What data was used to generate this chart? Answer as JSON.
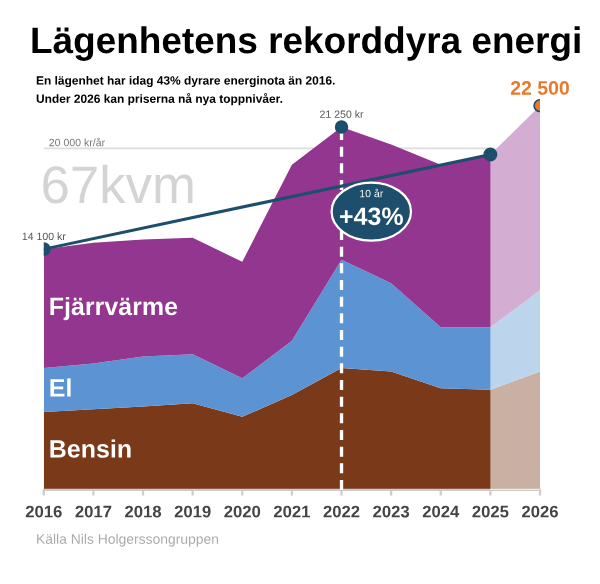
{
  "chart_data": {
    "type": "area",
    "stacked": true,
    "title": "Lägenhetens rekorddyra energi",
    "subtitle": "En lägenhet har idag 43% dyrare energinota än 2016.\nUnder 2026 kan priserna nå nya toppnivåer.",
    "categories": [
      "2016",
      "2017",
      "2018",
      "2019",
      "2020",
      "2021",
      "2022",
      "2023",
      "2024",
      "2025",
      "2026"
    ],
    "series": [
      {
        "name": "Bensin",
        "color": "#7a3a1a",
        "values": [
          4560,
          4720,
          4880,
          5080,
          4280,
          5560,
          7140,
          6940,
          5950,
          5870,
          6940
        ]
      },
      {
        "name": "El",
        "color": "#5b93d3",
        "values": [
          2580,
          2690,
          2940,
          2860,
          2260,
          3170,
          6340,
          5160,
          3570,
          3650,
          4760
        ]
      },
      {
        "name": "Fjärrvärme",
        "color": "#93368f",
        "values": [
          6960,
          7070,
          6850,
          6820,
          6820,
          10310,
          7770,
          8130,
          9520,
          10120,
          10800
        ]
      },
      {
        "type": "line",
        "color": "#1d4e6b",
        "marker": "circle",
        "values": [
          14100,
          null,
          null,
          null,
          null,
          null,
          null,
          null,
          null,
          19640,
          null
        ],
        "value_labels": [
          "14 100 kr",
          null,
          null,
          null,
          null,
          null,
          null,
          null,
          null,
          null,
          null
        ]
      },
      {
        "type": "scatter",
        "color": "#1d4e6b",
        "colors": [
          null,
          null,
          null,
          null,
          null,
          null,
          "#1d4e6b",
          null,
          null,
          null,
          "#e8792b"
        ],
        "values": [
          null,
          null,
          null,
          null,
          null,
          null,
          21250,
          null,
          null,
          null,
          22500
        ],
        "value_labels": [
          null,
          null,
          null,
          null,
          null,
          null,
          "21 250 kr",
          null,
          null,
          null,
          "22 500"
        ]
      }
    ],
    "bands": [
      {
        "axis": "x",
        "from": "2025",
        "to": "2026",
        "color": "#ffffff"
      }
    ],
    "ref_lines": [
      {
        "axis": "y",
        "value": 20000,
        "label": "20 000 kr/år",
        "color": "#dddddd"
      },
      {
        "axis": "x",
        "value": "2022",
        "color": "#ffffff",
        "line_style": "dashed"
      }
    ],
    "tick_labels": "x",
    "grid": false,
    "legend": false,
    "annotations": [
      "67kvm",
      "10 år",
      "+43%",
      "Källa Nils Holgerssongruppen"
    ]
  }
}
